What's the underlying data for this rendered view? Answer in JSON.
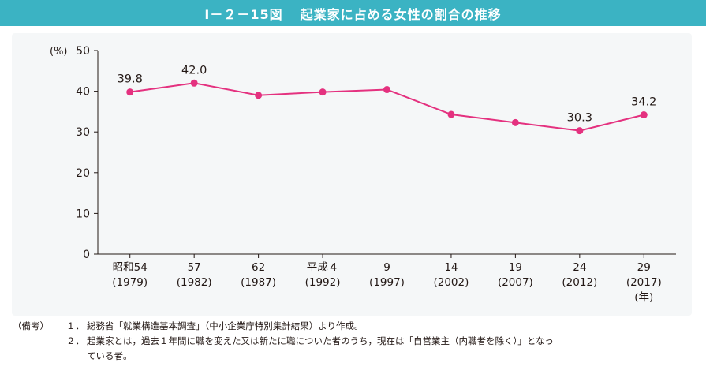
{
  "figure": {
    "number": "Ⅰ－２－15図",
    "title": "起業家に占める女性の割合の推移"
  },
  "chart_data": {
    "type": "line",
    "y_unit": "(%)",
    "x_unit": "(年)",
    "ylim": [
      0,
      50
    ],
    "yticks": [
      0,
      10,
      20,
      30,
      40,
      50
    ],
    "grid": false,
    "categories": [
      {
        "era": "昭和54",
        "year": "(1979)"
      },
      {
        "era": "57",
        "year": "(1982)"
      },
      {
        "era": "62",
        "year": "(1987)"
      },
      {
        "era": "平成４",
        "year": "(1992)"
      },
      {
        "era": "9",
        "year": "(1997)"
      },
      {
        "era": "14",
        "year": "(2002)"
      },
      {
        "era": "19",
        "year": "(2007)"
      },
      {
        "era": "24",
        "year": "(2012)"
      },
      {
        "era": "29",
        "year": "(2017)"
      }
    ],
    "series": [
      {
        "values": [
          39.8,
          42.0,
          39.0,
          39.8,
          40.4,
          34.3,
          32.3,
          30.3,
          34.2
        ],
        "data_labels": [
          "39.8",
          "42.0",
          null,
          null,
          null,
          null,
          null,
          "30.3",
          "34.2"
        ],
        "color": "#e4317f"
      }
    ]
  },
  "notes": {
    "head": "（備考）",
    "items": [
      {
        "num": "１．",
        "text": "総務省「就業構造基本調査」（中小企業庁特別集計結果）より作成。"
      },
      {
        "num": "２．",
        "text": "起業家とは，過去１年間に職を変えた又は新たに職についた者のうち，現在は「自営業主（内職者を除く）」となっ"
      }
    ],
    "continuation": "ている者。"
  }
}
